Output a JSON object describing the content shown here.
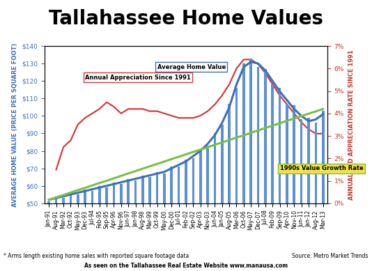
{
  "chart_data": {
    "type": "bar",
    "title": "Tallahassee Home Values",
    "y_label": "AVERAGE HOME VALUE (PRICE PER SQUARE FOOT)",
    "y2_label": "ANNUALIZED APPRECIATION RATE SINCE 1991",
    "annotations": [
      "* Arms length existing home sales with reported square footage data",
      "Source: Metro Market Trends",
      "As seen on the Tallahassee Real Estate Website www.manausa.com"
    ],
    "categories": [
      "Jan-91",
      "Aug-91",
      "Mar-92",
      "Oct-92",
      "May-93",
      "Dec-93",
      "Jul-94",
      "Feb-95",
      "Sep-95",
      "Apr-96",
      "Nov-96",
      "Jun-97",
      "Jan-98",
      "Aug-98",
      "Mar-99",
      "Oct-99",
      "May-00",
      "Dec-00",
      "Jul-01",
      "Feb-02",
      "Sep-02",
      "Apr-03",
      "Nov-03",
      "Jun-04",
      "Jan-05",
      "Aug-05",
      "Mar-06",
      "Oct-06",
      "May-07",
      "Dec-07",
      "Jul-08",
      "Feb-09",
      "Sep-09",
      "Apr-10",
      "Nov-10",
      "Jun-11",
      "Jan-12",
      "Aug-12",
      "Mar-13"
    ],
    "series": [
      {
        "type": "bar",
        "color": "#5b8fd6",
        "values": [
          51,
          54,
          53,
          56,
          55,
          58,
          57,
          60,
          59,
          62,
          61,
          64,
          63,
          66,
          65,
          68,
          67,
          71,
          71,
          75,
          76,
          81,
          83,
          90,
          95,
          107,
          116,
          130,
          133,
          128,
          127,
          118,
          116,
          107,
          106,
          98,
          99,
          96,
          103
        ]
      },
      {
        "name": "Average Home Value",
        "type": "line",
        "color": "#3f6fb5",
        "values": [
          52,
          53,
          54,
          55,
          56,
          57,
          58,
          59,
          60,
          61,
          62,
          63,
          64,
          65,
          66,
          67,
          68,
          70,
          72,
          74,
          77,
          80,
          84,
          89,
          96,
          105,
          118,
          128,
          131,
          130,
          126,
          120,
          114,
          109,
          104,
          100,
          97,
          98,
          101
        ]
      },
      {
        "name": "1990s Value Growth Rate",
        "type": "line",
        "color": "#7ac043",
        "values": [
          52,
          53.4,
          54.7,
          56.1,
          57.5,
          58.8,
          60.2,
          61.6,
          62.9,
          64.3,
          65.7,
          67.1,
          68.4,
          69.8,
          71.2,
          72.5,
          73.9,
          75.3,
          76.6,
          78.0,
          79.4,
          80.7,
          82.1,
          83.5,
          84.8,
          86.2,
          87.6,
          88.9,
          90.3,
          91.7,
          93.1,
          94.4,
          95.8,
          97.2,
          98.5,
          99.9,
          101.3,
          102.6,
          104.0
        ]
      },
      {
        "name": "Annual Appreciation Since 1991",
        "type": "line",
        "axis": "y2",
        "color": "#d63b3b",
        "values": [
          null,
          1.5,
          2.5,
          2.8,
          3.5,
          3.8,
          4.0,
          4.2,
          4.5,
          4.3,
          4.0,
          4.2,
          4.2,
          4.2,
          4.1,
          4.1,
          4.0,
          3.9,
          3.8,
          3.8,
          3.8,
          3.9,
          4.1,
          4.4,
          4.8,
          5.3,
          6.0,
          6.4,
          6.4,
          6.2,
          5.8,
          5.3,
          4.8,
          4.4,
          4.0,
          3.6,
          3.3,
          3.1,
          3.1
        ]
      }
    ],
    "ylim": [
      50,
      140
    ],
    "yticks": [
      {
        "value": 50,
        "label": "$50"
      },
      {
        "value": 60,
        "label": "$60"
      },
      {
        "value": 70,
        "label": "$70"
      },
      {
        "value": 80,
        "label": "$80"
      },
      {
        "value": 90,
        "label": "$90"
      },
      {
        "value": 100,
        "label": "$100"
      },
      {
        "value": 110,
        "label": "$110"
      },
      {
        "value": 120,
        "label": "$120"
      },
      {
        "value": 130,
        "label": "$130"
      },
      {
        "value": 140,
        "label": "$140"
      }
    ],
    "y2lim": [
      0,
      7
    ],
    "y2ticks": [
      {
        "value": 0,
        "label": "0%"
      },
      {
        "value": 1,
        "label": "1%"
      },
      {
        "value": 2,
        "label": "2%"
      },
      {
        "value": 3,
        "label": "3%"
      },
      {
        "value": 4,
        "label": "4%"
      },
      {
        "value": 5,
        "label": "5%"
      },
      {
        "value": 6,
        "label": "6%"
      },
      {
        "value": 7,
        "label": "7%"
      }
    ],
    "grid": false
  }
}
